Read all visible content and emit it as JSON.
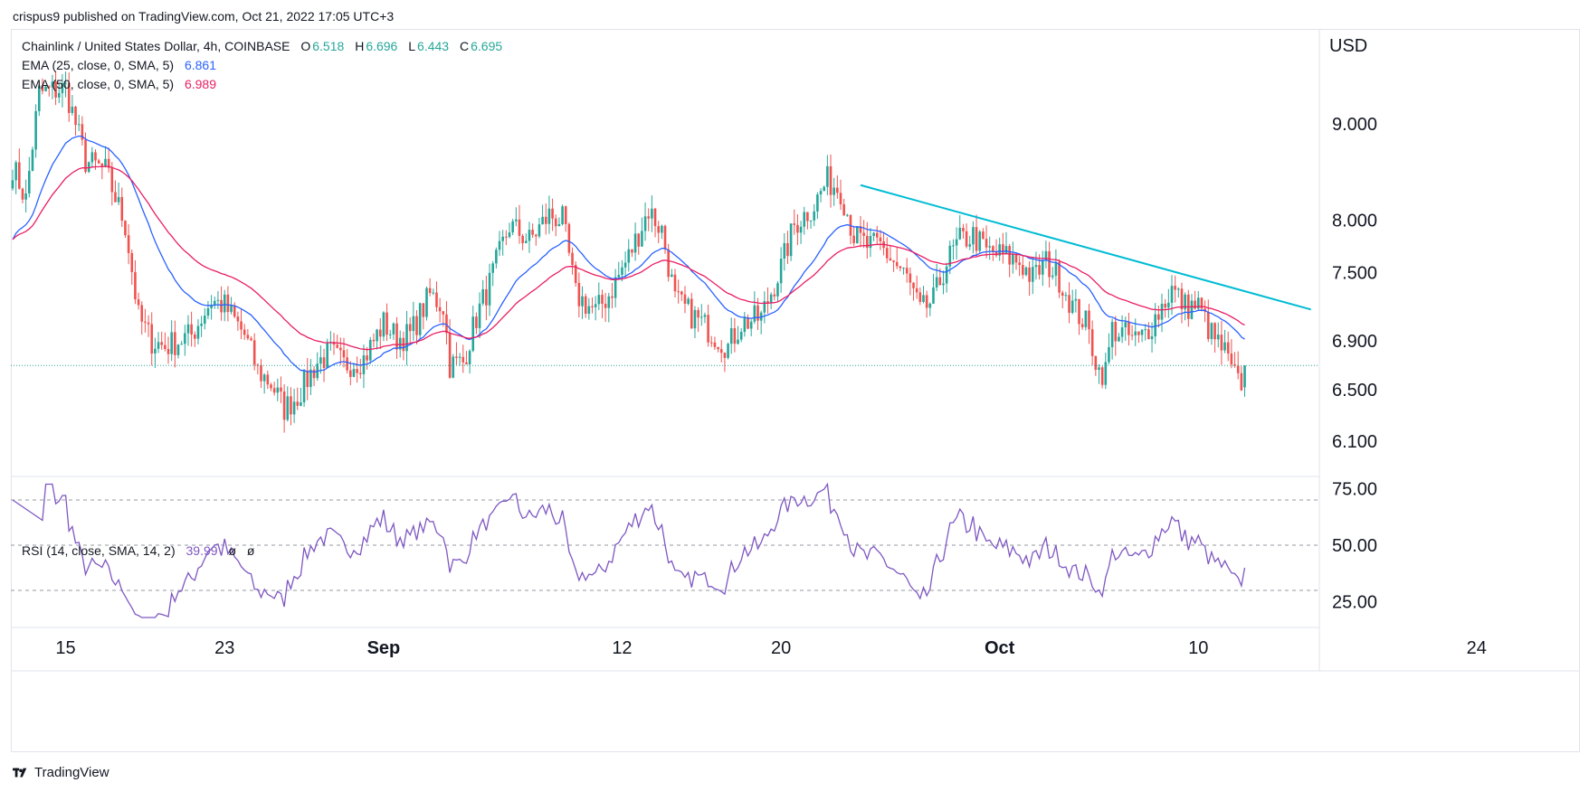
{
  "header": {
    "published": "crispus9 published on TradingView.com, Oct 21, 2022 17:05 UTC+3"
  },
  "legend": {
    "symbol": "Chainlink / United States Dollar, 4h, COINBASE",
    "o_label": "O",
    "o_value": "6.518",
    "h_label": "H",
    "h_value": "6.696",
    "l_label": "L",
    "l_value": "6.443",
    "c_label": "C",
    "c_value": "6.695",
    "ema25_label": "EMA (25, close, 0, SMA, 5)",
    "ema25_value": "6.861",
    "ema50_label": "EMA (50, close, 0, SMA, 5)",
    "ema50_value": "6.989",
    "rsi_label": "RSI (14, close, SMA, 14, 2)",
    "rsi_value": "39.99",
    "rsi_extra1": "ø",
    "rsi_extra2": "ø"
  },
  "footer": {
    "brand": "TradingView"
  },
  "colors": {
    "up": "#26a69a",
    "down": "#ef5350",
    "ema25": "#2962ff",
    "ema50": "#e91e63",
    "trend": "#00bcd4",
    "rsi": "#7e57c2",
    "grid": "#f0f3fa",
    "axis_text": "#131722"
  },
  "chart_data": [
    {
      "type": "candlestick",
      "title": "Chainlink / United States Dollar, 4h, COINBASE",
      "currency": "USD",
      "y_scale": "log",
      "ylim": [
        5.85,
        10.1
      ],
      "y_ticks": [
        {
          "label": "9.000",
          "value": 9.0
        },
        {
          "label": "8.000",
          "value": 8.0
        },
        {
          "label": "7.500",
          "value": 7.5
        },
        {
          "label": "6.900",
          "value": 6.9
        },
        {
          "label": "6.500",
          "value": 6.5
        },
        {
          "label": "6.100",
          "value": 6.1
        }
      ],
      "x_ticks": [
        {
          "label": "15",
          "bar": 16
        },
        {
          "label": "23",
          "bar": 64
        },
        {
          "label": "Sep",
          "bar": 112
        },
        {
          "label": "12",
          "bar": 184
        },
        {
          "label": "20",
          "bar": 232
        },
        {
          "label": "Oct",
          "bar": 298
        },
        {
          "label": "10",
          "bar": 358
        },
        {
          "label": "24",
          "bar": 442
        }
      ],
      "last_price": 6.695,
      "anchors": [
        [
          0,
          8.55
        ],
        [
          4,
          8.2
        ],
        [
          8,
          9.35
        ],
        [
          16,
          9.4
        ],
        [
          22,
          8.6
        ],
        [
          28,
          8.5
        ],
        [
          34,
          7.95
        ],
        [
          38,
          7.1
        ],
        [
          42,
          6.9
        ],
        [
          46,
          6.85
        ],
        [
          54,
          6.95
        ],
        [
          60,
          7.25
        ],
        [
          64,
          7.2
        ],
        [
          70,
          6.95
        ],
        [
          74,
          6.65
        ],
        [
          78,
          6.55
        ],
        [
          82,
          6.35
        ],
        [
          86,
          6.45
        ],
        [
          92,
          6.72
        ],
        [
          96,
          6.8
        ],
        [
          100,
          6.7
        ],
        [
          106,
          6.75
        ],
        [
          112,
          7.05
        ],
        [
          116,
          6.92
        ],
        [
          120,
          6.95
        ],
        [
          126,
          7.3
        ],
        [
          130,
          7.2
        ],
        [
          132,
          6.7
        ],
        [
          136,
          6.72
        ],
        [
          140,
          7.1
        ],
        [
          144,
          7.4
        ],
        [
          150,
          7.95
        ],
        [
          156,
          7.8
        ],
        [
          162,
          8.05
        ],
        [
          166,
          8.0
        ],
        [
          170,
          7.3
        ],
        [
          176,
          7.15
        ],
        [
          180,
          7.3
        ],
        [
          186,
          7.65
        ],
        [
          192,
          8.1
        ],
        [
          196,
          7.9
        ],
        [
          200,
          7.25
        ],
        [
          206,
          7.1
        ],
        [
          212,
          6.95
        ],
        [
          216,
          6.85
        ],
        [
          220,
          7.05
        ],
        [
          226,
          7.1
        ],
        [
          232,
          7.55
        ],
        [
          236,
          7.95
        ],
        [
          242,
          8.15
        ],
        [
          246,
          8.4
        ],
        [
          250,
          8.3
        ],
        [
          254,
          7.85
        ],
        [
          258,
          7.75
        ],
        [
          262,
          7.75
        ],
        [
          266,
          7.6
        ],
        [
          270,
          7.45
        ],
        [
          274,
          7.15
        ],
        [
          278,
          7.25
        ],
        [
          282,
          7.6
        ],
        [
          286,
          7.8
        ],
        [
          290,
          7.85
        ],
        [
          294,
          7.7
        ],
        [
          300,
          7.65
        ],
        [
          304,
          7.6
        ],
        [
          308,
          7.45
        ],
        [
          312,
          7.6
        ],
        [
          316,
          7.45
        ],
        [
          320,
          7.2
        ],
        [
          324,
          7.05
        ],
        [
          328,
          6.65
        ],
        [
          330,
          6.65
        ],
        [
          332,
          7.0
        ],
        [
          336,
          6.95
        ],
        [
          340,
          6.9
        ],
        [
          344,
          7.05
        ],
        [
          350,
          7.35
        ],
        [
          354,
          7.2
        ],
        [
          358,
          7.2
        ],
        [
          362,
          6.95
        ],
        [
          366,
          6.8
        ],
        [
          368,
          6.65
        ],
        [
          370,
          6.55
        ],
        [
          372,
          6.58
        ]
      ],
      "series": [
        {
          "name": "EMA (25, close, 0, SMA, 5)",
          "last": 6.861
        },
        {
          "name": "EMA (50, close, 0, SMA, 5)",
          "last": 6.989
        }
      ],
      "trendline": {
        "from": [
          256,
          8.35
        ],
        "to": [
          392,
          7.17
        ]
      }
    },
    {
      "type": "line",
      "title": "RSI (14, close, SMA, 14, 2)",
      "ylim": [
        14,
        80
      ],
      "y_ticks": [
        {
          "label": "75.00",
          "value": 75
        },
        {
          "label": "50.00",
          "value": 50
        },
        {
          "label": "25.00",
          "value": 25
        }
      ],
      "bands": [
        70,
        50,
        30
      ],
      "last": 39.99
    }
  ]
}
